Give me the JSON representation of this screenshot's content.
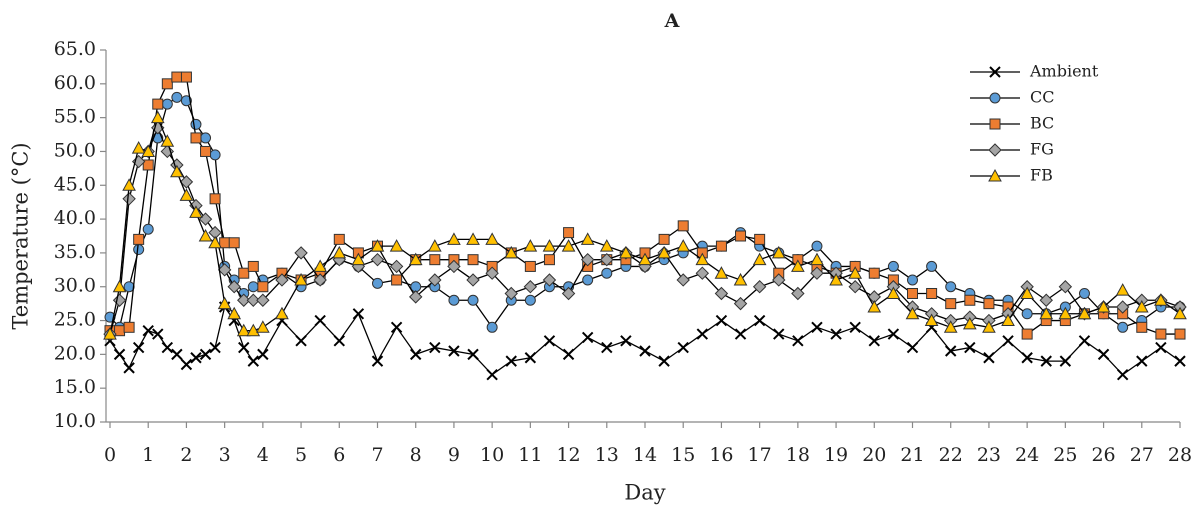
{
  "chart_data": {
    "type": "line",
    "title": "A",
    "xlabel": "Day",
    "ylabel": "Temperature (°C)",
    "x": [
      0,
      0.25,
      0.5,
      0.75,
      1,
      1.25,
      1.5,
      1.75,
      2,
      2.25,
      2.5,
      2.75,
      3,
      3.25,
      3.5,
      3.75,
      4,
      4.5,
      5,
      5.5,
      6,
      6.5,
      7,
      7.5,
      8,
      8.5,
      9,
      9.5,
      10,
      10.5,
      11,
      11.5,
      12,
      12.5,
      13,
      13.5,
      14,
      14.5,
      15,
      15.5,
      16,
      16.5,
      17,
      17.5,
      18,
      18.5,
      19,
      19.5,
      20,
      20.5,
      21,
      21.5,
      22,
      22.5,
      23,
      23.5,
      24,
      24.5,
      25,
      25.5,
      26,
      26.5,
      27,
      27.5,
      28
    ],
    "series": [
      {
        "name": "Ambient",
        "color": "#000000",
        "marker": "x",
        "values": [
          22,
          20,
          18,
          21,
          23.5,
          23,
          21,
          20,
          18.5,
          19.5,
          20,
          21,
          27,
          25,
          21,
          19,
          20,
          25,
          22,
          25,
          22,
          26,
          19,
          24,
          20,
          21,
          20.5,
          20,
          17,
          19,
          19.5,
          22,
          20,
          22.5,
          21,
          22,
          20.5,
          19,
          21,
          23,
          25,
          23,
          25,
          23,
          22,
          24,
          23,
          24,
          22,
          23,
          21,
          24,
          20.5,
          21,
          19.5,
          22,
          19.5,
          19,
          19,
          22,
          20,
          17,
          19,
          21,
          19
        ]
      },
      {
        "name": "CC",
        "color": "#5b9bd5",
        "marker": "circle",
        "values": [
          25.5,
          24,
          30,
          35.5,
          38.5,
          52,
          57,
          58,
          57.5,
          54,
          52,
          49.5,
          33,
          31,
          29,
          30,
          31,
          32,
          30,
          31,
          34,
          33,
          30.5,
          31,
          30,
          30,
          28,
          28,
          24,
          28,
          28,
          30,
          30,
          31,
          32,
          33,
          33,
          34,
          35,
          36,
          36,
          38,
          36,
          35,
          34,
          36,
          33,
          33,
          32,
          33,
          31,
          33,
          30,
          29,
          28,
          28,
          26,
          26,
          27,
          29,
          26,
          24,
          25,
          27,
          27
        ]
      },
      {
        "name": "BC",
        "color": "#ed7d31",
        "marker": "square",
        "values": [
          23.5,
          23.5,
          24,
          37,
          48,
          57,
          60,
          61,
          61,
          52,
          50,
          43,
          36.5,
          36.5,
          32,
          33,
          30,
          32,
          31,
          32,
          37,
          35,
          36,
          31,
          34,
          34,
          34,
          34,
          33,
          35,
          33,
          34,
          38,
          33,
          34,
          34,
          35,
          37,
          39,
          35,
          36,
          37.5,
          37,
          32,
          34,
          33,
          32,
          33,
          32,
          31,
          29,
          29,
          27.5,
          28,
          27.5,
          27,
          23,
          25,
          25,
          26,
          26,
          26,
          24,
          23,
          23
        ]
      },
      {
        "name": "FG",
        "color": "#a5a5a5",
        "marker": "diamond",
        "values": [
          23,
          28,
          43,
          48.5,
          50,
          53.5,
          50,
          48,
          45.5,
          42,
          40,
          38,
          32.5,
          30,
          28,
          28,
          28,
          31,
          35,
          31,
          34,
          33,
          34,
          33,
          28.5,
          31,
          33,
          31,
          32,
          29,
          30,
          31,
          29,
          34,
          34,
          35,
          33,
          35,
          31,
          32,
          29,
          27.5,
          30,
          31,
          29,
          32,
          32,
          30,
          28.5,
          30,
          27,
          26,
          25,
          25.5,
          25,
          26,
          30,
          28,
          30,
          26,
          27,
          27,
          28,
          28,
          27
        ]
      },
      {
        "name": "FB",
        "color": "#ffc000",
        "marker": "triangle",
        "values": [
          23,
          30,
          45,
          50.5,
          50,
          55,
          51.5,
          47,
          43.5,
          41,
          37.5,
          36.5,
          27.5,
          26,
          23.5,
          23.5,
          24,
          26,
          31,
          33,
          35,
          34,
          36,
          36,
          34,
          36,
          37,
          37,
          37,
          35,
          36,
          36,
          36,
          37,
          36,
          35,
          34,
          35,
          36,
          34,
          32,
          31,
          34,
          35,
          33,
          34,
          31,
          32,
          27,
          29,
          26,
          25,
          24,
          24.5,
          24,
          25,
          29,
          26,
          26,
          26,
          27,
          29.5,
          27,
          28,
          26
        ]
      }
    ],
    "xlim": [
      0,
      28
    ],
    "xticks": [
      0,
      1,
      2,
      3,
      4,
      5,
      6,
      7,
      8,
      9,
      10,
      11,
      12,
      13,
      14,
      15,
      16,
      17,
      18,
      19,
      20,
      21,
      22,
      23,
      24,
      25,
      26,
      27,
      28
    ],
    "ylim": [
      10,
      65
    ],
    "yticks": [
      {
        "value": 10,
        "label": "10.0"
      },
      {
        "value": 15,
        "label": "15.0"
      },
      {
        "value": 20,
        "label": "20.0"
      },
      {
        "value": 25,
        "label": "25.0"
      },
      {
        "value": 30,
        "label": "30.0"
      },
      {
        "value": 35,
        "label": "35.0"
      },
      {
        "value": 40,
        "label": "40.0"
      },
      {
        "value": 45,
        "label": "45.0"
      },
      {
        "value": 50,
        "label": "50.0"
      },
      {
        "value": 55,
        "label": "55.0"
      },
      {
        "value": 60,
        "label": "60.0"
      },
      {
        "value": 65,
        "label": "65.0"
      }
    ],
    "grid": false,
    "legend": "upper right"
  }
}
